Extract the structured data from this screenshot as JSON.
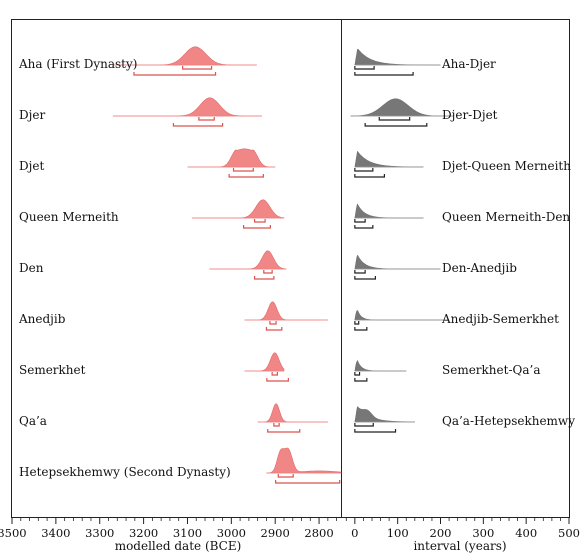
{
  "chart_data": [
    {
      "type": "area",
      "panel": "left",
      "xlabel": "modelled date (BCE)",
      "ylabel": "",
      "xlim": [
        3500,
        2750
      ],
      "x_reversed": true,
      "xticks": [
        3500,
        3400,
        3300,
        3200,
        3100,
        3000,
        2900,
        2800
      ],
      "grid": false,
      "color": "#f08080",
      "series": [
        {
          "name": "Aha (First Dynasty)",
          "mode": 3082,
          "sd": 24,
          "range": [
            3269,
            2942
          ],
          "ci68": [
            3111,
            3045
          ],
          "ci95": [
            3222,
            3036
          ]
        },
        {
          "name": "Djer",
          "mode": 3049,
          "sd": 22,
          "range": [
            3270,
            2930
          ],
          "ci68": [
            3074,
            3039
          ],
          "ci95": [
            3132,
            3020
          ]
        },
        {
          "name": "Djet",
          "mode": 2970,
          "sd": 22,
          "range": [
            3100,
            2900
          ],
          "ci68": [
            2995,
            2950
          ],
          "ci95": [
            3005,
            2927
          ]
        },
        {
          "name": "Queen Merneith",
          "mode": 2928,
          "sd": 16,
          "range": [
            3090,
            2880
          ],
          "ci68": [
            2947,
            2923
          ],
          "ci95": [
            2972,
            2911
          ]
        },
        {
          "name": "Den",
          "mode": 2917,
          "sd": 13,
          "range": [
            3050,
            2875
          ],
          "ci68": [
            2926,
            2907
          ],
          "ci95": [
            2947,
            2903
          ]
        },
        {
          "name": "Anedjib",
          "mode": 2906,
          "sd": 10,
          "range": [
            2970,
            2780
          ],
          "ci68": [
            2912,
            2898
          ],
          "ci95": [
            2920,
            2885
          ]
        },
        {
          "name": "Semerkhet",
          "mode": 2901,
          "sd": 10,
          "range": [
            2970,
            2880
          ],
          "ci68": [
            2907,
            2895
          ],
          "ci95": [
            2919,
            2870
          ]
        },
        {
          "name": "Qa’a",
          "mode": 2898,
          "sd": 8,
          "range": [
            2940,
            2780
          ],
          "ci68": [
            2903,
            2891
          ],
          "ci95": [
            2917,
            2844
          ]
        },
        {
          "name": "Hetepsekhemwy (Second Dynasty)",
          "mode": 2878,
          "sd": 15,
          "range": [
            2920,
            2740
          ],
          "ci68": [
            2893,
            2859
          ],
          "ci95": [
            2899,
            2753
          ]
        }
      ]
    },
    {
      "type": "area",
      "panel": "right",
      "xlabel": "interval (years)",
      "ylabel": "",
      "xlim": [
        -30,
        500
      ],
      "xticks": [
        0,
        100,
        200,
        300,
        400,
        500
      ],
      "grid": false,
      "color": "#777777",
      "series": [
        {
          "name": "Aha-Djer",
          "mode": 8,
          "range": [
            0,
            200
          ],
          "ci68": [
            0,
            45
          ],
          "ci95": [
            0,
            136
          ]
        },
        {
          "name": "Djer-Djet",
          "mode": 95,
          "range": [
            -10,
            230
          ],
          "ci68": [
            57,
            128
          ],
          "ci95": [
            24,
            168
          ]
        },
        {
          "name": "Djet-Queen Merneith",
          "mode": 6,
          "range": [
            0,
            160
          ],
          "ci68": [
            0,
            42
          ],
          "ci95": [
            0,
            69
          ]
        },
        {
          "name": "Queen Merneith-Den",
          "mode": 4,
          "range": [
            0,
            160
          ],
          "ci68": [
            0,
            24
          ],
          "ci95": [
            0,
            42
          ]
        },
        {
          "name": "Den-Anedjib",
          "mode": 4,
          "range": [
            0,
            200
          ],
          "ci68": [
            0,
            24
          ],
          "ci95": [
            0,
            48
          ]
        },
        {
          "name": "Anedjib-Semerkhet",
          "mode": 2,
          "range": [
            0,
            220
          ],
          "ci68": [
            0,
            9
          ],
          "ci95": [
            0,
            28
          ]
        },
        {
          "name": "Semerkhet-Qa’a",
          "mode": 2,
          "range": [
            0,
            120
          ],
          "ci68": [
            0,
            11
          ],
          "ci95": [
            0,
            28
          ]
        },
        {
          "name": "Qa’a-Hetepsekhemwy",
          "mode": 5,
          "range": [
            0,
            140
          ],
          "ci68": [
            0,
            43
          ],
          "ci95": [
            0,
            95
          ]
        }
      ]
    }
  ]
}
